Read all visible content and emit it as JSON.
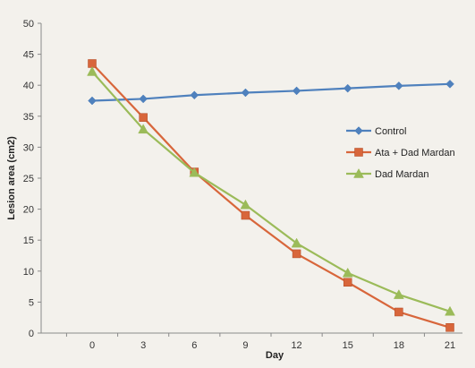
{
  "chart_data": {
    "type": "line",
    "title": "",
    "xlabel": "Day",
    "ylabel": "Lesion area (cm2)",
    "x": [
      0,
      3,
      6,
      9,
      12,
      15,
      18,
      21
    ],
    "x_tick_labels": [
      "0",
      "3",
      "6",
      "9",
      "12",
      "15",
      "18",
      "21"
    ],
    "ylim": [
      0,
      50
    ],
    "y_ticks": [
      0,
      5,
      10,
      15,
      20,
      25,
      30,
      35,
      40,
      45,
      50
    ],
    "y_tick_labels": [
      "0",
      "5",
      "10",
      "15",
      "20",
      "25",
      "30",
      "35",
      "40",
      "45",
      "50"
    ],
    "grid": false,
    "legend_position": "right",
    "series": [
      {
        "name": "Control",
        "marker": "diamond",
        "color": "#4f81bd",
        "values": [
          37.5,
          37.8,
          38.4,
          38.8,
          39.1,
          39.5,
          39.9,
          40.2
        ]
      },
      {
        "name": "Ata + Dad Mardan",
        "marker": "square",
        "color": "#d8663b",
        "values": [
          43.5,
          34.8,
          26.0,
          19.0,
          12.8,
          8.2,
          3.4,
          0.9
        ]
      },
      {
        "name": "Dad Mardan",
        "marker": "triangle",
        "color": "#9bbb59",
        "values": [
          42.2,
          32.9,
          25.9,
          20.7,
          14.5,
          9.7,
          6.2,
          3.5
        ]
      }
    ]
  }
}
